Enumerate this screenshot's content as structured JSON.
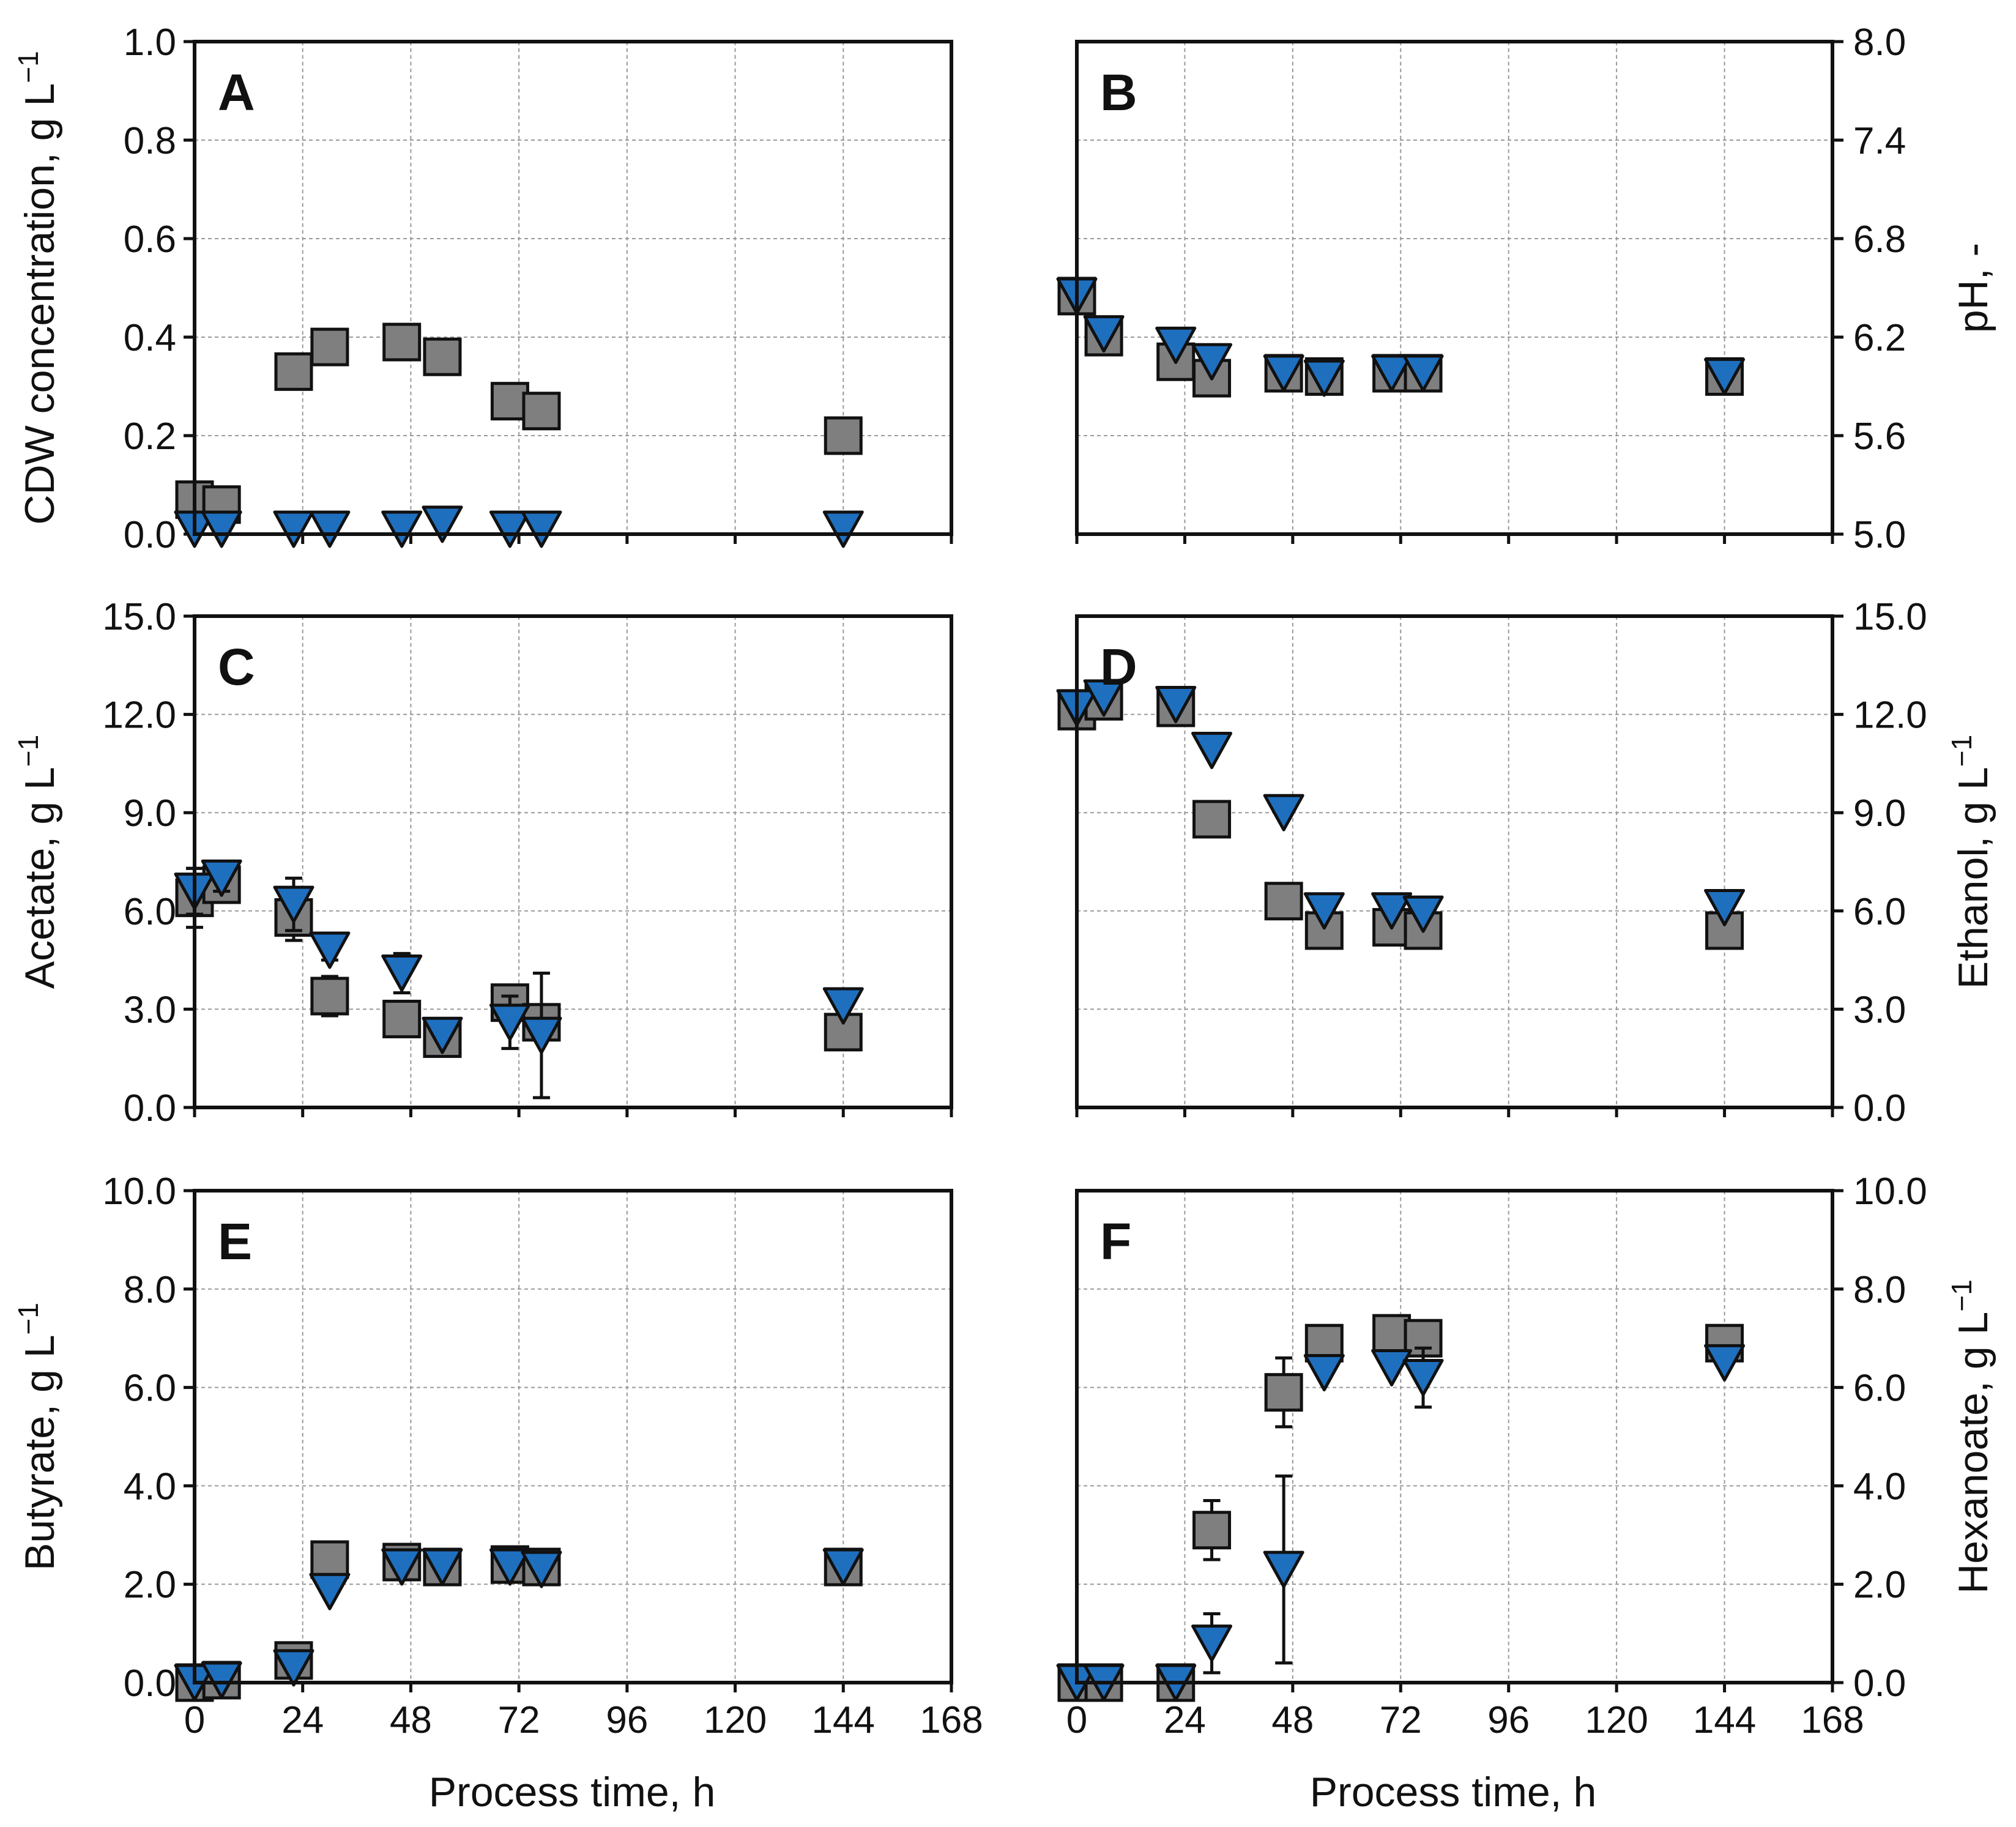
{
  "colors": {
    "square_fill": "#7f7f7f",
    "triangle_fill": "#1f6fbf",
    "marker_stroke": "#111111",
    "grid": "#9a9a9a",
    "frame": "#111111"
  },
  "figure": {
    "x_axis_title": "Process time, h",
    "x_ticks": [
      0,
      24,
      48,
      72,
      96,
      120,
      144,
      168
    ],
    "x_tick_labels": [
      "0",
      "24",
      "48",
      "72",
      "96",
      "120",
      "144",
      "168"
    ]
  },
  "chart_data": [
    {
      "type": "scatter",
      "panel": "A",
      "ylabel": "CDW concentration, g L",
      "ylabel_superscript": "−1",
      "ylabel_side": "left",
      "xlim": [
        0,
        168
      ],
      "ylim": [
        0,
        1.0
      ],
      "yticks": [
        0.0,
        0.2,
        0.4,
        0.6,
        0.8,
        1.0
      ],
      "ytick_labels": [
        "0.0",
        "0.2",
        "0.4",
        "0.6",
        "0.8",
        "1.0"
      ],
      "grid": true,
      "series": [
        {
          "marker": "square",
          "points": [
            {
              "x": 0,
              "y": 0.07
            },
            {
              "x": 6,
              "y": 0.06
            },
            {
              "x": 22,
              "y": 0.33
            },
            {
              "x": 30,
              "y": 0.38
            },
            {
              "x": 46,
              "y": 0.39
            },
            {
              "x": 55,
              "y": 0.36
            },
            {
              "x": 70,
              "y": 0.27
            },
            {
              "x": 77,
              "y": 0.25
            },
            {
              "x": 144,
              "y": 0.2
            }
          ]
        },
        {
          "marker": "triangle",
          "points": [
            {
              "x": 0,
              "y": 0.01
            },
            {
              "x": 6,
              "y": 0.01
            },
            {
              "x": 22,
              "y": 0.01
            },
            {
              "x": 30,
              "y": 0.01
            },
            {
              "x": 46,
              "y": 0.01
            },
            {
              "x": 55,
              "y": 0.02
            },
            {
              "x": 70,
              "y": 0.01
            },
            {
              "x": 77,
              "y": 0.01
            },
            {
              "x": 144,
              "y": 0.01
            }
          ]
        }
      ]
    },
    {
      "type": "scatter",
      "panel": "B",
      "ylabel": "pH, -",
      "ylabel_superscript": "",
      "ylabel_side": "right",
      "xlim": [
        0,
        168
      ],
      "ylim": [
        5.0,
        8.0
      ],
      "yticks": [
        5.0,
        5.6,
        6.2,
        6.8,
        7.4,
        8.0
      ],
      "ytick_labels": [
        "5.0",
        "5.6",
        "6.2",
        "6.8",
        "7.4",
        "8.0"
      ],
      "grid": true,
      "series": [
        {
          "marker": "square",
          "points": [
            {
              "x": 0,
              "y": 6.45
            },
            {
              "x": 6,
              "y": 6.2
            },
            {
              "x": 22,
              "y": 6.05
            },
            {
              "x": 30,
              "y": 5.95
            },
            {
              "x": 46,
              "y": 5.98
            },
            {
              "x": 55,
              "y": 5.96
            },
            {
              "x": 70,
              "y": 5.98
            },
            {
              "x": 77,
              "y": 5.98
            },
            {
              "x": 144,
              "y": 5.96
            }
          ]
        },
        {
          "marker": "triangle",
          "points": [
            {
              "x": 0,
              "y": 6.45
            },
            {
              "x": 6,
              "y": 6.22
            },
            {
              "x": 22,
              "y": 6.15
            },
            {
              "x": 30,
              "y": 6.05
            },
            {
              "x": 46,
              "y": 5.98
            },
            {
              "x": 55,
              "y": 5.95
            },
            {
              "x": 70,
              "y": 5.98
            },
            {
              "x": 77,
              "y": 5.98
            },
            {
              "x": 144,
              "y": 5.96
            }
          ]
        }
      ]
    },
    {
      "type": "scatter",
      "panel": "C",
      "ylabel": "Acetate, g L",
      "ylabel_superscript": "−1",
      "ylabel_side": "left",
      "xlim": [
        0,
        168
      ],
      "ylim": [
        0,
        15.0
      ],
      "yticks": [
        0.0,
        3.0,
        6.0,
        9.0,
        12.0,
        15.0
      ],
      "ytick_labels": [
        "0.0",
        "3.0",
        "6.0",
        "9.0",
        "12.0",
        "15.0"
      ],
      "grid": true,
      "series": [
        {
          "marker": "square",
          "points": [
            {
              "x": 0,
              "y": 6.4,
              "err": 0.9
            },
            {
              "x": 6,
              "y": 6.8,
              "err": 0.5
            },
            {
              "x": 22,
              "y": 5.8,
              "err": 0.7
            },
            {
              "x": 30,
              "y": 3.4,
              "err": 0.6
            },
            {
              "x": 46,
              "y": 2.7,
              "err": 0.0
            },
            {
              "x": 55,
              "y": 2.1,
              "err": 0.0
            },
            {
              "x": 70,
              "y": 3.2,
              "err": 0.5
            },
            {
              "x": 77,
              "y": 2.6,
              "err": 0.5
            },
            {
              "x": 144,
              "y": 2.3,
              "err": 0.0
            }
          ]
        },
        {
          "marker": "triangle",
          "points": [
            {
              "x": 0,
              "y": 6.6,
              "err": 0.7
            },
            {
              "x": 6,
              "y": 7.0,
              "err": 0.4
            },
            {
              "x": 22,
              "y": 6.2,
              "err": 0.8
            },
            {
              "x": 30,
              "y": 4.8,
              "err": 0.3
            },
            {
              "x": 46,
              "y": 4.1,
              "err": 0.6
            },
            {
              "x": 55,
              "y": 2.2,
              "err": 0.0
            },
            {
              "x": 70,
              "y": 2.6,
              "err": 0.8
            },
            {
              "x": 77,
              "y": 2.2,
              "err": 1.9
            },
            {
              "x": 144,
              "y": 3.1,
              "err": 0.0
            }
          ]
        }
      ]
    },
    {
      "type": "scatter",
      "panel": "D",
      "ylabel": "Ethanol, g L",
      "ylabel_superscript": "−1",
      "ylabel_side": "right",
      "xlim": [
        0,
        168
      ],
      "ylim": [
        0,
        15.0
      ],
      "yticks": [
        0.0,
        3.0,
        6.0,
        9.0,
        12.0,
        15.0
      ],
      "ytick_labels": [
        "0.0",
        "3.0",
        "6.0",
        "9.0",
        "12.0",
        "15.0"
      ],
      "grid": true,
      "series": [
        {
          "marker": "square",
          "points": [
            {
              "x": 0,
              "y": 12.1,
              "err": 0.0
            },
            {
              "x": 6,
              "y": 12.4,
              "err": 0.0
            },
            {
              "x": 22,
              "y": 12.2,
              "err": 0.0
            },
            {
              "x": 30,
              "y": 8.8,
              "err": 0.0
            },
            {
              "x": 46,
              "y": 6.3,
              "err": 0.5
            },
            {
              "x": 55,
              "y": 5.4,
              "err": 0.0
            },
            {
              "x": 70,
              "y": 5.5,
              "err": 0.0
            },
            {
              "x": 77,
              "y": 5.4,
              "err": 0.0
            },
            {
              "x": 144,
              "y": 5.4,
              "err": 0.0
            }
          ]
        },
        {
          "marker": "triangle",
          "points": [
            {
              "x": 0,
              "y": 12.2,
              "err": 0.0
            },
            {
              "x": 6,
              "y": 12.5,
              "err": 0.0
            },
            {
              "x": 22,
              "y": 12.3,
              "err": 0.0
            },
            {
              "x": 30,
              "y": 10.9,
              "err": 0.0
            },
            {
              "x": 46,
              "y": 9.0,
              "err": 0.0
            },
            {
              "x": 55,
              "y": 6.0,
              "err": 0.0
            },
            {
              "x": 70,
              "y": 6.0,
              "err": 0.0
            },
            {
              "x": 77,
              "y": 5.9,
              "err": 0.0
            },
            {
              "x": 144,
              "y": 6.1,
              "err": 0.0
            }
          ]
        }
      ]
    },
    {
      "type": "scatter",
      "panel": "E",
      "ylabel": "Butyrate, g L",
      "ylabel_superscript": "−1",
      "ylabel_side": "left",
      "xlim": [
        0,
        168
      ],
      "ylim": [
        0,
        10.0
      ],
      "yticks": [
        0.0,
        2.0,
        4.0,
        6.0,
        8.0,
        10.0
      ],
      "ytick_labels": [
        "0.0",
        "2.0",
        "4.0",
        "6.0",
        "8.0",
        "10.0"
      ],
      "grid": true,
      "series": [
        {
          "marker": "square",
          "points": [
            {
              "x": 0,
              "y": 0.0
            },
            {
              "x": 6,
              "y": 0.05
            },
            {
              "x": 22,
              "y": 0.45
            },
            {
              "x": 30,
              "y": 2.5
            },
            {
              "x": 46,
              "y": 2.45
            },
            {
              "x": 55,
              "y": 2.35
            },
            {
              "x": 70,
              "y": 2.4
            },
            {
              "x": 77,
              "y": 2.35
            },
            {
              "x": 144,
              "y": 2.35
            }
          ]
        },
        {
          "marker": "triangle",
          "points": [
            {
              "x": 0,
              "y": 0.0
            },
            {
              "x": 6,
              "y": 0.05
            },
            {
              "x": 22,
              "y": 0.3
            },
            {
              "x": 30,
              "y": 1.85
            },
            {
              "x": 46,
              "y": 2.35
            },
            {
              "x": 55,
              "y": 2.35
            },
            {
              "x": 70,
              "y": 2.35
            },
            {
              "x": 77,
              "y": 2.3
            },
            {
              "x": 144,
              "y": 2.35
            }
          ]
        }
      ]
    },
    {
      "type": "scatter",
      "panel": "F",
      "ylabel": "Hexanoate, g L",
      "ylabel_superscript": "−1",
      "ylabel_side": "right",
      "xlim": [
        0,
        168
      ],
      "ylim": [
        0,
        10.0
      ],
      "yticks": [
        0.0,
        2.0,
        4.0,
        6.0,
        8.0,
        10.0
      ],
      "ytick_labels": [
        "0.0",
        "2.0",
        "4.0",
        "6.0",
        "8.0",
        "10.0"
      ],
      "grid": true,
      "series": [
        {
          "marker": "square",
          "points": [
            {
              "x": 0,
              "y": 0.0,
              "err": 0.0
            },
            {
              "x": 6,
              "y": 0.0,
              "err": 0.0
            },
            {
              "x": 22,
              "y": 0.0,
              "err": 0.0
            },
            {
              "x": 30,
              "y": 3.1,
              "err": 0.6
            },
            {
              "x": 46,
              "y": 5.9,
              "err": 0.7
            },
            {
              "x": 55,
              "y": 6.9,
              "err": 0.0
            },
            {
              "x": 70,
              "y": 7.1,
              "err": 0.0
            },
            {
              "x": 77,
              "y": 7.0,
              "err": 0.0
            },
            {
              "x": 144,
              "y": 6.9,
              "err": 0.0
            }
          ]
        },
        {
          "marker": "triangle",
          "points": [
            {
              "x": 0,
              "y": 0.0,
              "err": 0.0
            },
            {
              "x": 6,
              "y": 0.0,
              "err": 0.0
            },
            {
              "x": 22,
              "y": 0.0,
              "err": 0.0
            },
            {
              "x": 30,
              "y": 0.8,
              "err": 0.6
            },
            {
              "x": 46,
              "y": 2.3,
              "err": 1.9
            },
            {
              "x": 55,
              "y": 6.3,
              "err": 0.0
            },
            {
              "x": 70,
              "y": 6.4,
              "err": 0.0
            },
            {
              "x": 77,
              "y": 6.2,
              "err": 0.6
            },
            {
              "x": 144,
              "y": 6.5,
              "err": 0.0
            }
          ]
        }
      ]
    }
  ]
}
